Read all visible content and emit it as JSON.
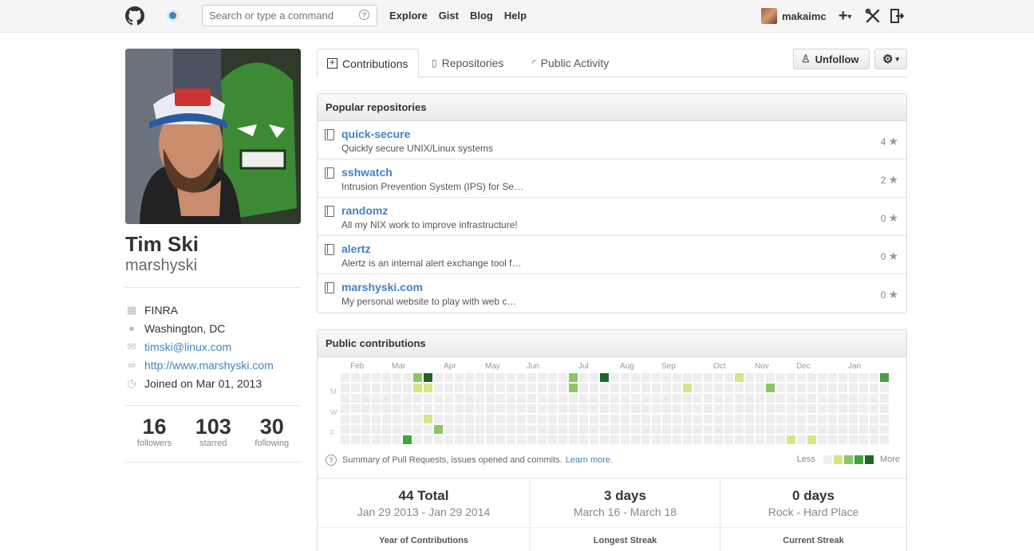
{
  "header": {
    "search_placeholder": "Search or type a command",
    "search_help": "?",
    "nav": [
      "Explore",
      "Gist",
      "Blog",
      "Help"
    ],
    "user": "makaimc",
    "plus": "+",
    "caret": "▾"
  },
  "profile": {
    "fullname": "Tim Ski",
    "username": "marshyski",
    "details": {
      "org": "FINRA",
      "location": "Washington, DC",
      "email": "timski@linux.com",
      "website": "http://www.marshyski.com",
      "joined": "Joined on Mar 01, 2013"
    },
    "stats": [
      {
        "num": "16",
        "label": "followers"
      },
      {
        "num": "103",
        "label": "starred"
      },
      {
        "num": "30",
        "label": "following"
      }
    ]
  },
  "tabs": [
    "Contributions",
    "Repositories",
    "Public Activity"
  ],
  "buttons": {
    "unfollow": "Unfollow"
  },
  "popular": {
    "title": "Popular repositories",
    "repos": [
      {
        "name": "quick-secure",
        "desc": "Quickly secure UNIX/Linux systems",
        "stars": "4"
      },
      {
        "name": "sshwatch",
        "desc": "Intrusion Prevention System (IPS) for Se…",
        "stars": "2"
      },
      {
        "name": "randomz",
        "desc": "All my NIX work to improve infrastructure!",
        "stars": "0"
      },
      {
        "name": "alertz",
        "desc": "Alertz is an internal alert exchange tool f…",
        "stars": "0"
      },
      {
        "name": "marshyski.com",
        "desc": "My personal website to play with web c…",
        "stars": "0"
      }
    ]
  },
  "contributions": {
    "title": "Public contributions",
    "months": [
      "Feb",
      "Mar",
      "Apr",
      "May",
      "Jun",
      "Jul",
      "Aug",
      "Sep",
      "Oct",
      "Nov",
      "Dec",
      "Jan"
    ],
    "days": [
      "M",
      "W",
      "F"
    ],
    "summary": "Summary of Pull Requests, issues opened and commits.",
    "learn_more": "Learn more.",
    "legend_less": "Less",
    "legend_more": "More",
    "colors": [
      "#eeeeee",
      "#d6e685",
      "#8cc665",
      "#44a340",
      "#1e6823"
    ],
    "streaks": [
      {
        "value": "44 Total",
        "range": "Jan 29 2013 - Jan 29 2014",
        "label": "Year of Contributions"
      },
      {
        "value": "3 days",
        "range": "March 16 - March 18",
        "label": "Longest Streak"
      },
      {
        "value": "0 days",
        "range": "Rock - Hard Place",
        "label": "Current Streak"
      }
    ]
  }
}
